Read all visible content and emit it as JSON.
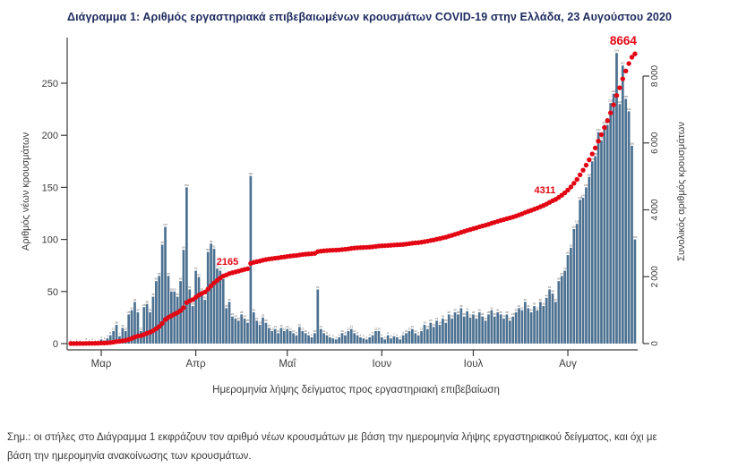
{
  "header": {
    "title": "Διάγραμμα 1: Αριθμός εργαστηριακά επιβεβαιωμένων κρουσμάτων COVID-19 στην Ελλάδα, 23 Αυγούστου 2020"
  },
  "footnote": {
    "line1": "Σημ.: οι στήλες στο Διάγραμμα 1 εκφράζουν τον αριθμό νέων κρουσμάτων με βάση την ημερομηνία λήψης εργαστηριακού δείγματος, και όχι με",
    "line2": "βάση την ημερομηνία ανακοίνωσης των κρουσμάτων."
  },
  "chart_data": {
    "type": "bar",
    "title": "Διάγραμμα 1: Αριθμός εργαστηριακά επιβεβαιωμένων κρουσμάτων COVID-19 στην Ελλάδα, 23 Αυγούστου 2020",
    "xlabel": "Ημερομηνία λήψης δείγματος προς εργαστηριακή επιβεβαίωση",
    "ylabel_left": "Αριθμός νέων κρουσμάτων",
    "ylabel_right": "Συνολικός αριθμός κρουσμάτων",
    "y_left_ticks": [
      0,
      50,
      100,
      150,
      200,
      250
    ],
    "y_left_range": [
      0,
      292
    ],
    "y_right_ticks": [
      0,
      2000,
      4000,
      6000,
      8000
    ],
    "y_right_range": [
      0,
      9350
    ],
    "grid": false,
    "legend": "none",
    "x_unit": "day (one bar per sampling date, late Feb – 23 Aug 2020)",
    "x_month_ticks": [
      {
        "label": "Μαρ",
        "day": 10
      },
      {
        "label": "Απρ",
        "day": 41
      },
      {
        "label": "Μαΐ",
        "day": 71
      },
      {
        "label": "Ιουν",
        "day": 102
      },
      {
        "label": "Ιουλ",
        "day": 132
      },
      {
        "label": "Αυγ",
        "day": 163
      }
    ],
    "series": [
      {
        "name": "daily_new_cases",
        "type": "bar",
        "axis": "left",
        "color": "#4d7191",
        "values": [
          1,
          0,
          1,
          1,
          0,
          2,
          1,
          2,
          1,
          1,
          4,
          3,
          5,
          8,
          12,
          18,
          7,
          15,
          12,
          28,
          32,
          40,
          30,
          12,
          35,
          38,
          30,
          45,
          60,
          65,
          95,
          112,
          65,
          50,
          50,
          45,
          60,
          90,
          150,
          52,
          36,
          70,
          64,
          50,
          42,
          88,
          96,
          91,
          72,
          70,
          62,
          34,
          40,
          26,
          24,
          22,
          28,
          24,
          20,
          161,
          30,
          22,
          18,
          25,
          20,
          15,
          12,
          14,
          10,
          15,
          12,
          14,
          12,
          10,
          8,
          16,
          12,
          10,
          8,
          6,
          10,
          52,
          14,
          10,
          8,
          6,
          5,
          4,
          6,
          10,
          8,
          12,
          14,
          10,
          8,
          6,
          5,
          4,
          6,
          8,
          12,
          12,
          6,
          4,
          8,
          5,
          7,
          6,
          4,
          8,
          10,
          12,
          14,
          10,
          8,
          12,
          18,
          14,
          20,
          16,
          22,
          18,
          24,
          20,
          28,
          24,
          30,
          28,
          34,
          26,
          31,
          25,
          28,
          24,
          30,
          26,
          22,
          28,
          32,
          26,
          30,
          28,
          24,
          28,
          22,
          26,
          30,
          34,
          32,
          40,
          34,
          30,
          36,
          32,
          40,
          36,
          44,
          52,
          48,
          40,
          60,
          65,
          70,
          85,
          92,
          110,
          115,
          138,
          140,
          150,
          160,
          175,
          180,
          203,
          195,
          210,
          210,
          231,
          240,
          279,
          230,
          267,
          235,
          223,
          190,
          100
        ]
      },
      {
        "name": "cumulative_cases",
        "type": "line_dots",
        "axis": "right",
        "color": "#e30613",
        "derived": "cumulative sum of daily_new_cases",
        "final_value": 8664
      }
    ],
    "annotations": [
      {
        "value": "2165",
        "day": 55
      },
      {
        "value": "4311",
        "day": 159
      },
      {
        "value": "8664",
        "day": 185
      }
    ]
  },
  "colors": {
    "bar": "#4d7191",
    "line": "#e30613",
    "title": "#1d2a5e",
    "axis": "#3c3c3c",
    "note": "#3a3a3a"
  }
}
